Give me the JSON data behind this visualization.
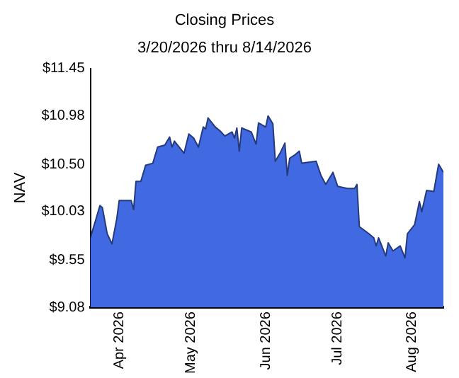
{
  "chart_data": {
    "type": "area",
    "title": "Closing Prices",
    "subtitle": "3/20/2026 thru 8/14/2026",
    "ylabel": "NAV",
    "x": [
      "2026-03-20",
      "2026-03-22",
      "2026-03-24",
      "2026-03-25",
      "2026-03-27",
      "2026-03-29",
      "2026-03-31",
      "2026-04-01",
      "2026-04-06",
      "2026-04-07",
      "2026-04-08",
      "2026-04-10",
      "2026-04-12",
      "2026-04-15",
      "2026-04-17",
      "2026-04-20",
      "2026-04-22",
      "2026-04-23",
      "2026-04-24",
      "2026-04-28",
      "2026-04-30",
      "2026-05-02",
      "2026-05-04",
      "2026-05-06",
      "2026-05-07",
      "2026-05-08",
      "2026-05-11",
      "2026-05-13",
      "2026-05-15",
      "2026-05-18",
      "2026-05-19",
      "2026-05-20",
      "2026-05-21",
      "2026-05-22",
      "2026-05-26",
      "2026-05-28",
      "2026-05-29",
      "2026-06-01",
      "2026-06-02",
      "2026-06-04",
      "2026-06-05",
      "2026-06-07",
      "2026-06-09",
      "2026-06-10",
      "2026-06-11",
      "2026-06-13",
      "2026-06-15",
      "2026-06-16",
      "2026-06-22",
      "2026-06-24",
      "2026-06-26",
      "2026-06-29",
      "2026-07-01",
      "2026-07-05",
      "2026-07-08",
      "2026-07-09",
      "2026-07-10",
      "2026-07-14",
      "2026-07-16",
      "2026-07-17",
      "2026-07-18",
      "2026-07-21",
      "2026-07-22",
      "2026-07-24",
      "2026-07-27",
      "2026-07-29",
      "2026-07-30",
      "2026-08-02",
      "2026-08-04",
      "2026-08-05",
      "2026-08-07",
      "2026-08-10",
      "2026-08-12",
      "2026-08-14"
    ],
    "series": [
      {
        "color": "#4169e1",
        "values": [
          9.77,
          9.93,
          10.09,
          10.07,
          9.81,
          9.71,
          9.96,
          10.14,
          10.14,
          10.05,
          10.33,
          10.33,
          10.49,
          10.51,
          10.67,
          10.69,
          10.77,
          10.67,
          10.73,
          10.61,
          10.8,
          10.76,
          10.67,
          10.87,
          10.85,
          10.96,
          10.87,
          10.83,
          10.78,
          10.82,
          10.76,
          10.86,
          10.63,
          10.86,
          10.82,
          10.7,
          10.91,
          10.87,
          10.98,
          10.9,
          10.53,
          10.61,
          10.71,
          10.39,
          10.56,
          10.59,
          10.63,
          10.51,
          10.53,
          10.39,
          10.3,
          10.42,
          10.28,
          10.26,
          10.26,
          10.3,
          9.88,
          9.81,
          9.77,
          9.69,
          9.77,
          9.59,
          9.72,
          9.64,
          9.69,
          9.57,
          9.81,
          9.9,
          10.13,
          10.03,
          10.24,
          10.23,
          10.5,
          10.42
        ]
      }
    ],
    "xlim": [
      "2026-03-20",
      "2026-08-14"
    ],
    "xticks": [
      {
        "value": "2026-04-01",
        "label": "Apr 2026"
      },
      {
        "value": "2026-05-01",
        "label": "May 2026"
      },
      {
        "value": "2026-06-01",
        "label": "Jun 2026"
      },
      {
        "value": "2026-07-01",
        "label": "Jul 2026"
      },
      {
        "value": "2026-08-01",
        "label": "Aug 2026"
      }
    ],
    "ylim": [
      9.08,
      11.45
    ],
    "yticks": [
      {
        "value": 9.08,
        "label": "$9.08"
      },
      {
        "value": 9.55,
        "label": "$9.55"
      },
      {
        "value": 10.03,
        "label": "$10.03"
      },
      {
        "value": 10.5,
        "label": "$10.50"
      },
      {
        "value": 10.98,
        "label": "$10.98"
      },
      {
        "value": 11.45,
        "label": "$11.45"
      }
    ],
    "grid": false,
    "legend": false
  }
}
